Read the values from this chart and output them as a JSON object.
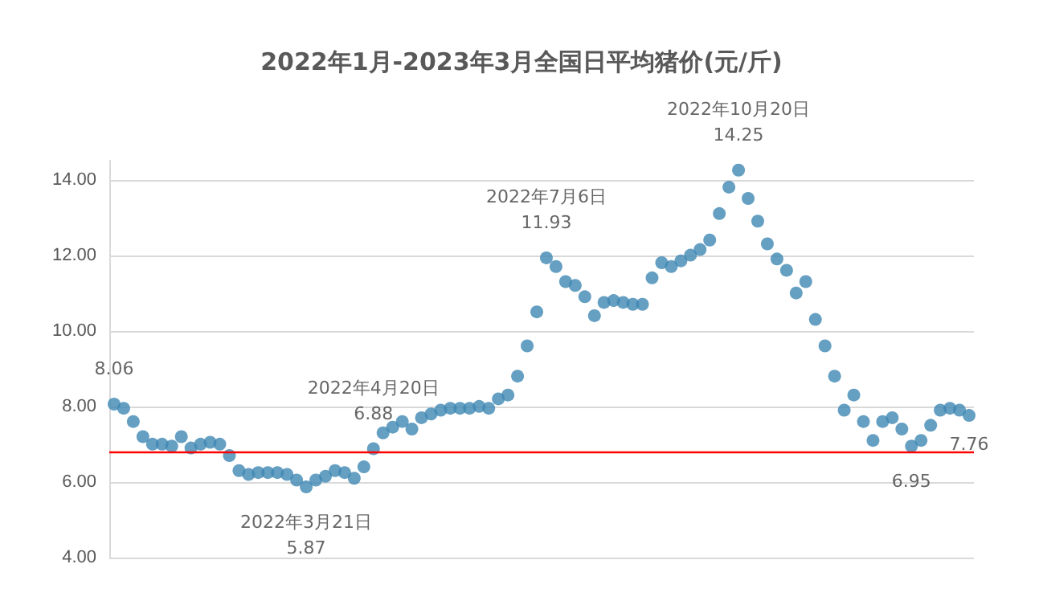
{
  "chart_data": {
    "type": "scatter",
    "title": "2022年1月-2023年3月全国日平均猪价(元/斤)",
    "categories": [
      null,
      null,
      null,
      null,
      null,
      null,
      null,
      null,
      null,
      null,
      null,
      null,
      null,
      null,
      null,
      null,
      null,
      null,
      null,
      null,
      null,
      null,
      null,
      null,
      null,
      null,
      null,
      null,
      null,
      null,
      null,
      null,
      null,
      null,
      null,
      null,
      null,
      null,
      null,
      null,
      null,
      null,
      null,
      null,
      null,
      null,
      null,
      null,
      null,
      null,
      null,
      null,
      null,
      null,
      null,
      null,
      null,
      null,
      null,
      null,
      null,
      null,
      null,
      null,
      null,
      null,
      null,
      null,
      null,
      null,
      null,
      null,
      null,
      null,
      null,
      null,
      null,
      null,
      null,
      null,
      null,
      null,
      null,
      null,
      null,
      null,
      null,
      null,
      null,
      null
    ],
    "series": [
      {
        "color": "#3f87b3",
        "values": [
          8.06,
          7.95,
          7.6,
          7.2,
          7.0,
          7.0,
          6.95,
          7.2,
          6.9,
          7.0,
          7.05,
          7.0,
          6.7,
          6.3,
          6.2,
          6.25,
          6.25,
          6.25,
          6.2,
          6.05,
          5.87,
          6.05,
          6.15,
          6.3,
          6.25,
          6.1,
          6.4,
          6.88,
          7.3,
          7.45,
          7.6,
          7.4,
          7.7,
          7.8,
          7.9,
          7.95,
          7.95,
          7.95,
          8.0,
          7.95,
          8.2,
          8.3,
          8.8,
          9.6,
          10.5,
          11.93,
          11.7,
          11.3,
          11.2,
          10.9,
          10.4,
          10.75,
          10.8,
          10.75,
          10.7,
          10.7,
          11.4,
          11.8,
          11.7,
          11.85,
          12.0,
          12.15,
          12.4,
          13.1,
          13.8,
          14.25,
          13.5,
          12.9,
          12.3,
          11.9,
          11.6,
          11.0,
          11.3,
          10.3,
          9.6,
          8.8,
          7.9,
          8.3,
          7.6,
          7.1,
          7.6,
          7.7,
          7.4,
          6.95,
          7.1,
          7.5,
          7.9,
          7.95,
          7.9,
          7.76
        ],
        "value_labels": [
          "8.06",
          null,
          null,
          null,
          null,
          null,
          null,
          null,
          null,
          null,
          null,
          null,
          null,
          null,
          null,
          null,
          null,
          null,
          null,
          null,
          "2022年3月21日\n5.87",
          null,
          null,
          null,
          null,
          null,
          null,
          "2022年4月20日\n6.88",
          null,
          null,
          null,
          null,
          null,
          null,
          null,
          null,
          null,
          null,
          null,
          null,
          null,
          null,
          null,
          null,
          null,
          "2022年7月6日\n11.93",
          null,
          null,
          null,
          null,
          null,
          null,
          null,
          null,
          null,
          null,
          null,
          null,
          null,
          null,
          null,
          null,
          null,
          null,
          null,
          "2022年10月20日\n14.25",
          null,
          null,
          null,
          null,
          null,
          null,
          null,
          null,
          null,
          null,
          null,
          null,
          null,
          null,
          null,
          null,
          null,
          "6.95",
          null,
          null,
          null,
          null,
          null,
          "7.76"
        ]
      }
    ],
    "ylim": [
      4,
      14.5
    ],
    "yticks": [
      {
        "value": 4,
        "label": "4.00"
      },
      {
        "value": 6,
        "label": "6.00"
      },
      {
        "value": 8,
        "label": "8.00"
      },
      {
        "value": 10,
        "label": "10.00"
      },
      {
        "value": 12,
        "label": "12.00"
      },
      {
        "value": 14,
        "label": "14.00"
      }
    ],
    "grid": "y",
    "marker": "circle",
    "ref_lines": [
      {
        "axis": "y",
        "value": 6.8,
        "color": "#ff0000"
      }
    ]
  }
}
